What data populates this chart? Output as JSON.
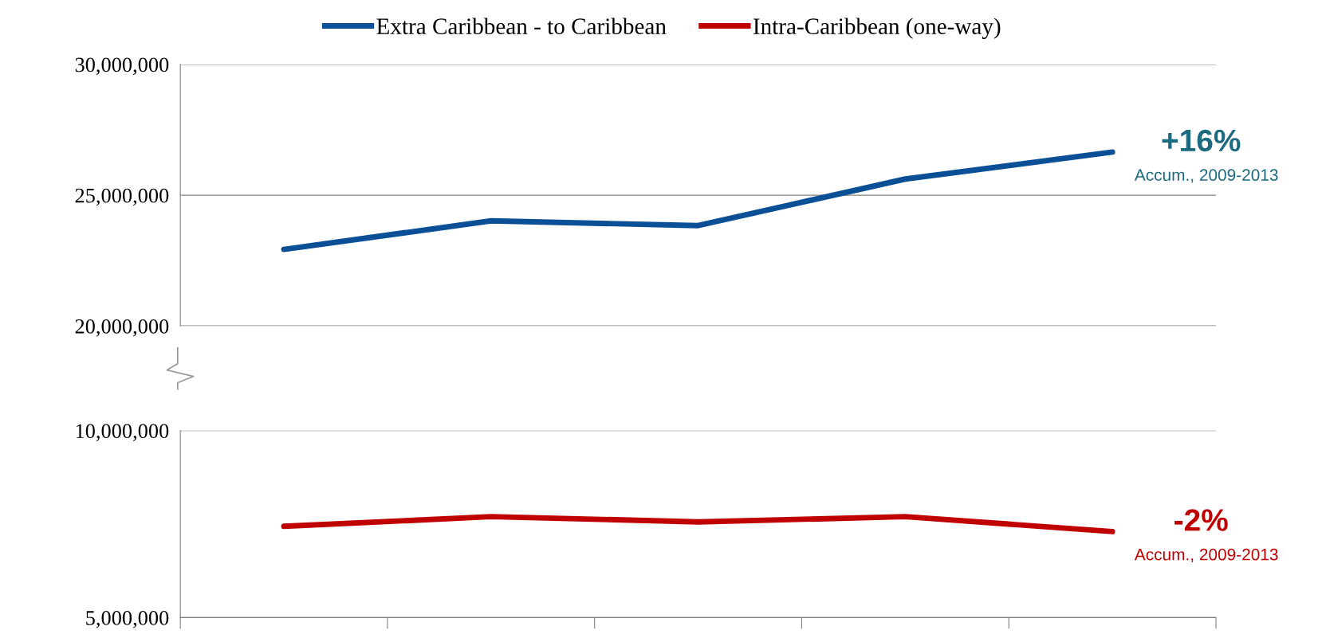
{
  "chart_data": [
    {
      "type": "line",
      "categories": [
        null,
        null,
        null,
        null,
        null
      ],
      "series": [
        {
          "name": "Extra Caribbean - to Caribbean",
          "color": "#0b4f96",
          "values": [
            22930000,
            24020000,
            23840000,
            25620000,
            26650000
          ]
        }
      ],
      "ylim": [
        20000000,
        30000000
      ],
      "yticks": [
        {
          "value": 20000000,
          "label": "20,000,000"
        },
        {
          "value": 25000000,
          "label": "25,000,000"
        },
        {
          "value": 30000000,
          "label": "30,000,000"
        }
      ],
      "grid": "y",
      "legend": "top",
      "tick_labels": "y",
      "marker": "none",
      "line_style": "solid",
      "annotations": [
        "+16%",
        "Accum., 2009-2013"
      ]
    },
    {
      "type": "line",
      "categories": [
        null,
        null,
        null,
        null,
        null
      ],
      "series": [
        {
          "name": "Intra-Caribbean (one-way)",
          "color": "#c00000",
          "values": [
            7440000,
            7700000,
            7560000,
            7700000,
            7300000
          ]
        }
      ],
      "ylim": [
        5000000,
        10000000
      ],
      "yticks": [
        {
          "value": 5000000,
          "label": "5,000,000"
        },
        {
          "value": 10000000,
          "label": "10,000,000"
        }
      ],
      "grid": "y",
      "legend": "top",
      "tick_labels": "y",
      "marker": "none",
      "line_style": "solid",
      "annotations": [
        "-2%",
        "Accum., 2009-2013"
      ]
    }
  ]
}
